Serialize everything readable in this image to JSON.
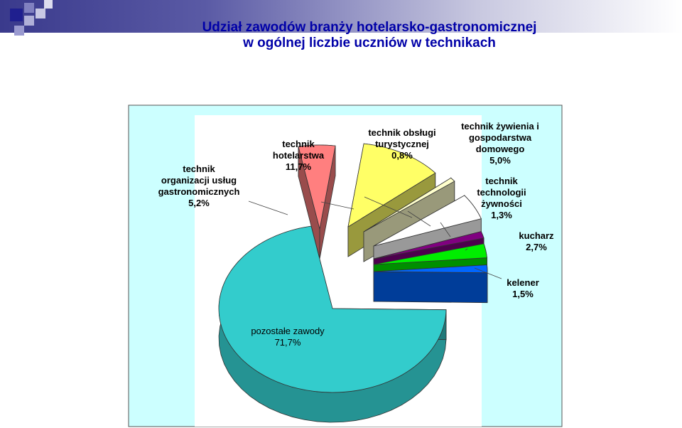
{
  "title": {
    "line1": "Udział zawodów branży hotelarsko-gastronomicznej",
    "line2": "w ogólnej liczbie uczniów w technikach"
  },
  "colors": {
    "accent": "#0000a8",
    "chart_area_bg": "#ccffff",
    "plot_bg": "#ffffff"
  },
  "chart_data": {
    "type": "pie",
    "title": "Udział zawodów branży hotelarsko-gastronomicznej w ogólnej liczbie uczniów w technikach",
    "slices": [
      {
        "label": [
          "technik",
          "organizacji usług",
          "gastronomicznych"
        ],
        "value_text": "5,2%",
        "value": 5.2,
        "color": "#ff7f7f"
      },
      {
        "label": [
          "technik",
          "hotelarstwa"
        ],
        "value_text": "11,7%",
        "value": 11.7,
        "color": "#ffff66"
      },
      {
        "label": [
          "technik obsługi",
          "turystycznej"
        ],
        "value_text": "0,8%",
        "value": 0.8,
        "color": "#ffffcc"
      },
      {
        "label": [
          "technik żywienia i",
          "gospodarstwa",
          "domowego"
        ],
        "value_text": "5,0%",
        "value": 5.0,
        "color": "#ffffff"
      },
      {
        "label": [
          "technik",
          "technologii",
          "żywności"
        ],
        "value_text": "1,3%",
        "value": 1.3,
        "color": "#800080"
      },
      {
        "label": [
          "kucharz"
        ],
        "value_text": "2,7%",
        "value": 2.7,
        "color": "#00ee00"
      },
      {
        "label": [
          "kelener"
        ],
        "value_text": "1,5%",
        "value": 1.5,
        "color": "#0066ff"
      },
      {
        "label": [
          "pozostałe zawody"
        ],
        "value_text": "71,7%",
        "value": 71.7,
        "color": "#33cccc"
      }
    ],
    "legend": "none",
    "exploded": true,
    "style": "3d"
  }
}
